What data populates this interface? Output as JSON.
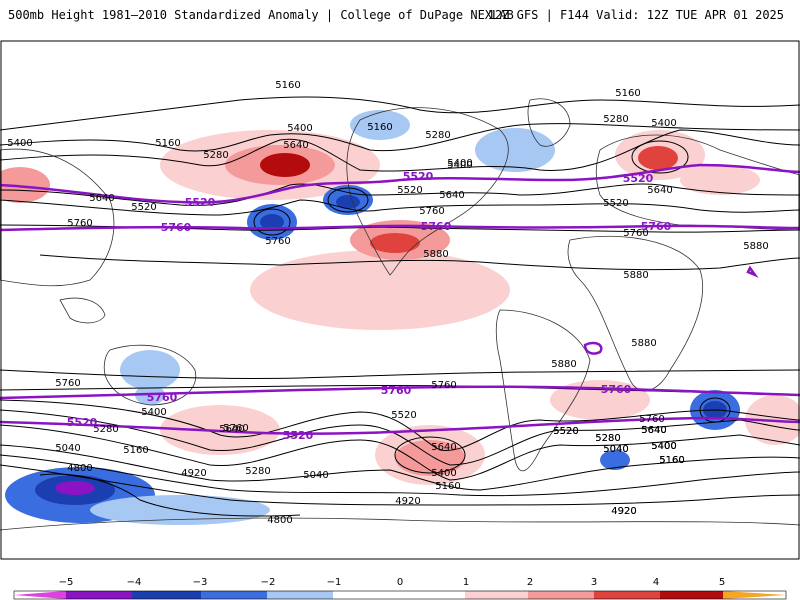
{
  "header": {
    "left": "500mb Height 1981–2010 Standardized Anomaly | College of DuPage NEXLAB",
    "right": "12Z GFS | F144 Valid: 12Z TUE APR 01 2025"
  },
  "colors": {
    "neg5": "#e040e0",
    "neg4": "#8a14c4",
    "neg3": "#1b3fb0",
    "neg2": "#3a6ee0",
    "neg1": "#a6c8f3",
    "zero": "#ffffff",
    "pos1": "#fbd0d0",
    "pos2": "#f59a9a",
    "pos3": "#e0433d",
    "pos4": "#b40c0c",
    "pos5": "#f5a623",
    "contour": "#000000",
    "highlight": "#8a14c4",
    "coast": "#333333"
  },
  "colorbar": {
    "ticks": [
      "−5",
      "−4",
      "−3",
      "−2",
      "−1",
      "0",
      "1",
      "2",
      "3",
      "4",
      "5"
    ]
  },
  "contour_labels": {
    "black": [
      "5160",
      "5400",
      "5160",
      "5280",
      "5400",
      "5160",
      "5280",
      "5160",
      "5400",
      "5280",
      "5400",
      "5400",
      "5640",
      "5520",
      "5640",
      "5760",
      "5760",
      "5640",
      "5520",
      "5760",
      "5880",
      "5520",
      "5640",
      "5760",
      "5880",
      "5880",
      "5880",
      "5880",
      "5760",
      "5760",
      "5400",
      "5640",
      "5280",
      "5520",
      "5160",
      "5040",
      "5760",
      "5520",
      "5640",
      "5400",
      "5280",
      "5040",
      "4920",
      "5040",
      "5160",
      "4920",
      "4800",
      "4800",
      "5400",
      "5640",
      "5160",
      "5280",
      "4920",
      "5520",
      "5640",
      "5400",
      "5160",
      "5760",
      "5640",
      "5400",
      "5160",
      "5040",
      "5280",
      "4920"
    ],
    "highlight": [
      "5520",
      "5520",
      "5520",
      "5760",
      "5760",
      "5760",
      "5760",
      "5760",
      "5760",
      "5520",
      "5520"
    ]
  }
}
